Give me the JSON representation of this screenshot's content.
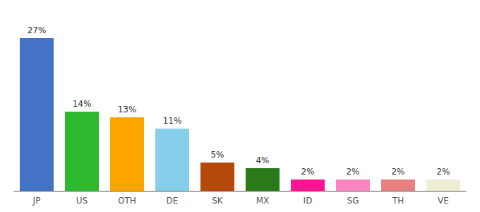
{
  "chart_data": {
    "type": "bar",
    "categories": [
      "JP",
      "US",
      "OTH",
      "DE",
      "SK",
      "MX",
      "ID",
      "SG",
      "TH",
      "VE"
    ],
    "values": [
      27,
      14,
      13,
      11,
      5,
      4,
      2,
      2,
      2,
      2
    ],
    "value_labels": [
      "27%",
      "14%",
      "13%",
      "11%",
      "5%",
      "4%",
      "2%",
      "2%",
      "2%",
      "2%"
    ],
    "colors": [
      "#4472C4",
      "#2DB82D",
      "#FFA500",
      "#87CEEB",
      "#B5490A",
      "#2A7A1A",
      "#FF1493",
      "#FF85C0",
      "#E88080",
      "#F0EDD5"
    ],
    "ylim": [
      0,
      30
    ],
    "data_labels": true,
    "grid": false,
    "tick_labels": "x"
  }
}
